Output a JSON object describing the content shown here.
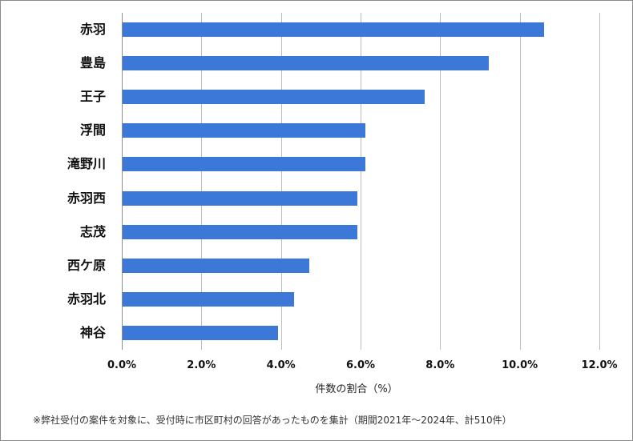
{
  "chart_data": {
    "type": "bar",
    "orientation": "horizontal",
    "title": "",
    "xlabel": "件数の割合（%）",
    "ylabel": "",
    "categories": [
      "赤羽",
      "豊島",
      "王子",
      "浮間",
      "滝野川",
      "赤羽西",
      "志茂",
      "西ケ原",
      "赤羽北",
      "神谷"
    ],
    "values": [
      10.6,
      9.2,
      7.6,
      6.1,
      6.1,
      5.9,
      5.9,
      4.7,
      4.3,
      3.9
    ],
    "unit": "%",
    "xlim": [
      0,
      12
    ],
    "xticks": [
      "0.0%",
      "2.0%",
      "4.0%",
      "6.0%",
      "8.0%",
      "10.0%",
      "12.0%"
    ],
    "grid": "vertical",
    "legend": "none",
    "bar_color": "#3c78d8",
    "footnote": "※弊社受付の案件を対象に、受付時に市区町村の回答があったものを集計（期間2021年～2024年、計510件）"
  }
}
